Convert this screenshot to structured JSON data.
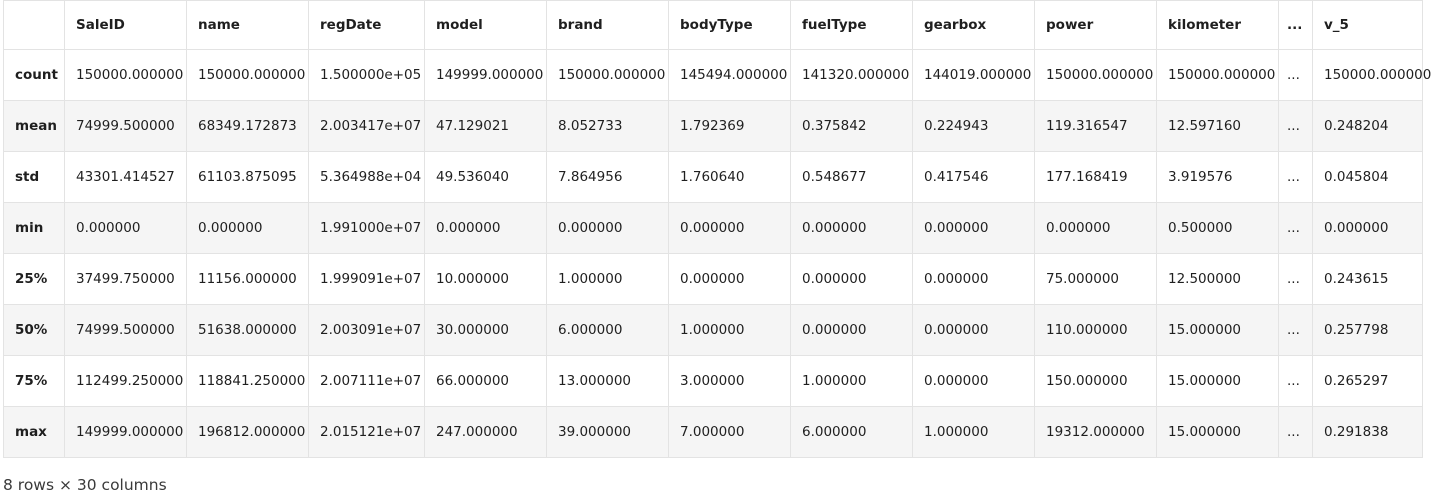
{
  "table": {
    "columns": [
      "SaleID",
      "name",
      "regDate",
      "model",
      "brand",
      "bodyType",
      "fuelType",
      "gearbox",
      "power",
      "kilometer",
      "...",
      "v_5"
    ],
    "rows": [
      {
        "index": "count",
        "values": [
          "150000.000000",
          "150000.000000",
          "1.500000e+05",
          "149999.000000",
          "150000.000000",
          "145494.000000",
          "141320.000000",
          "144019.000000",
          "150000.000000",
          "150000.000000",
          "...",
          "150000.000000"
        ]
      },
      {
        "index": "mean",
        "values": [
          "74999.500000",
          "68349.172873",
          "2.003417e+07",
          "47.129021",
          "8.052733",
          "1.792369",
          "0.375842",
          "0.224943",
          "119.316547",
          "12.597160",
          "...",
          "0.248204"
        ]
      },
      {
        "index": "std",
        "values": [
          "43301.414527",
          "61103.875095",
          "5.364988e+04",
          "49.536040",
          "7.864956",
          "1.760640",
          "0.548677",
          "0.417546",
          "177.168419",
          "3.919576",
          "...",
          "0.045804"
        ]
      },
      {
        "index": "min",
        "values": [
          "0.000000",
          "0.000000",
          "1.991000e+07",
          "0.000000",
          "0.000000",
          "0.000000",
          "0.000000",
          "0.000000",
          "0.000000",
          "0.500000",
          "...",
          "0.000000"
        ]
      },
      {
        "index": "25%",
        "values": [
          "37499.750000",
          "11156.000000",
          "1.999091e+07",
          "10.000000",
          "1.000000",
          "0.000000",
          "0.000000",
          "0.000000",
          "75.000000",
          "12.500000",
          "...",
          "0.243615"
        ]
      },
      {
        "index": "50%",
        "values": [
          "74999.500000",
          "51638.000000",
          "2.003091e+07",
          "30.000000",
          "6.000000",
          "1.000000",
          "0.000000",
          "0.000000",
          "110.000000",
          "15.000000",
          "...",
          "0.257798"
        ]
      },
      {
        "index": "75%",
        "values": [
          "112499.250000",
          "118841.250000",
          "2.007111e+07",
          "66.000000",
          "13.000000",
          "3.000000",
          "1.000000",
          "0.000000",
          "150.000000",
          "15.000000",
          "...",
          "0.265297"
        ]
      },
      {
        "index": "max",
        "values": [
          "149999.000000",
          "196812.000000",
          "2.015121e+07",
          "247.000000",
          "39.000000",
          "7.000000",
          "6.000000",
          "1.000000",
          "19312.000000",
          "15.000000",
          "...",
          "0.291838"
        ]
      }
    ],
    "shape_text": "8 rows × 30 columns"
  }
}
